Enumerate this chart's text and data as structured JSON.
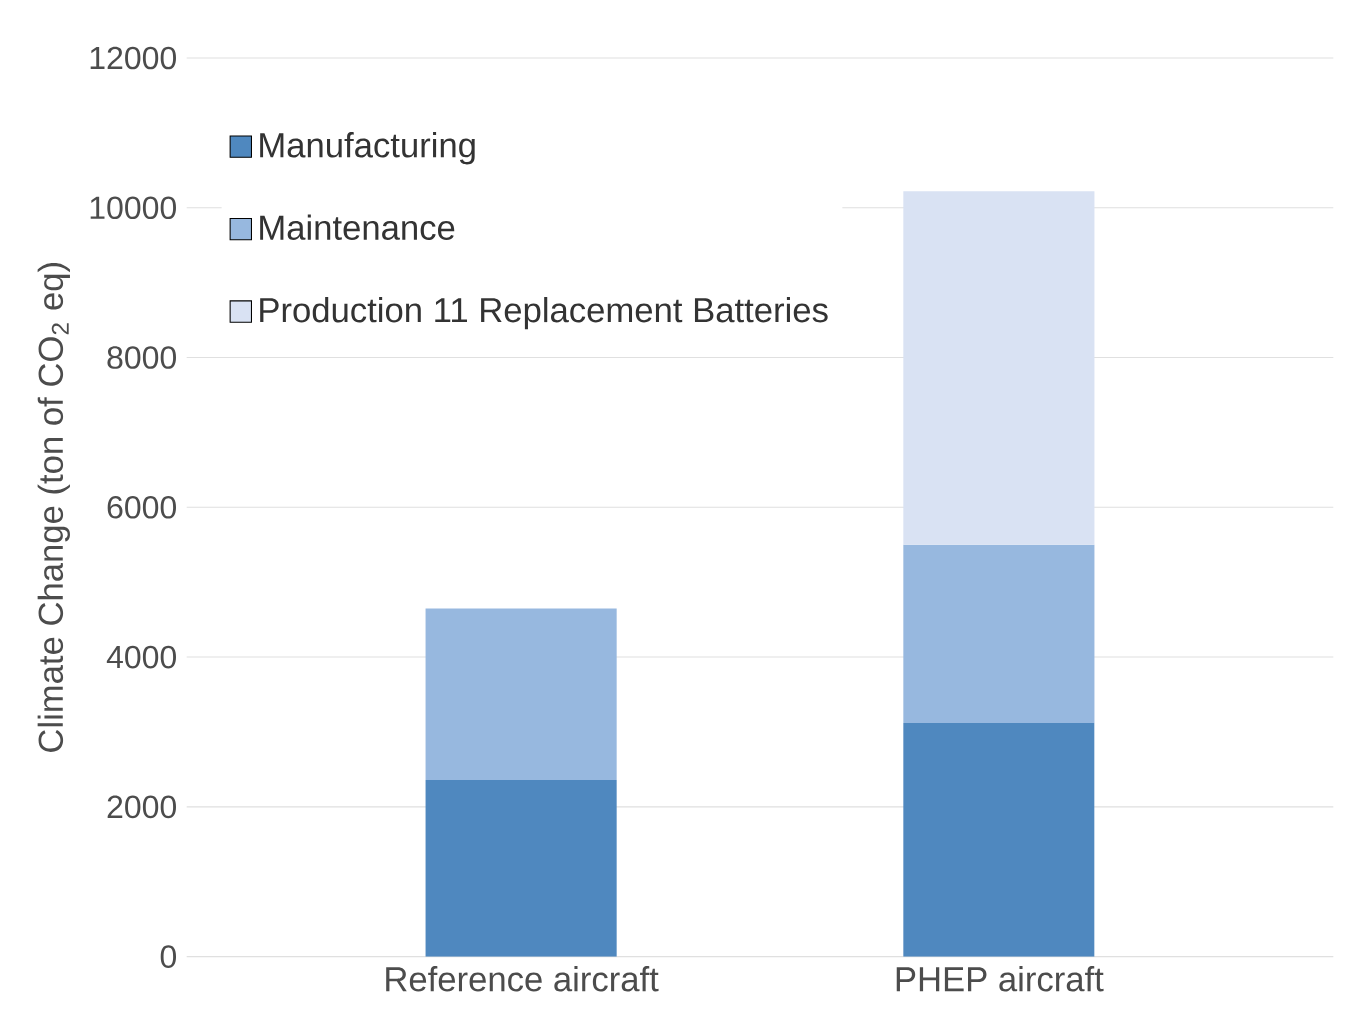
{
  "chart_data": {
    "type": "bar",
    "stacked": true,
    "ylabel": "Climate Change (ton of CO$_{2}$ eq)",
    "categories": [
      "Reference aircraft",
      "PHEP aircraft"
    ],
    "series": [
      {
        "name": "Manufacturing",
        "color": "#4f88bf",
        "values": [
          2360,
          3120
        ]
      },
      {
        "name": "Maintenance",
        "color": "#97b8df",
        "values": [
          2290,
          2380
        ]
      },
      {
        "name": "Production 11 Replacement Batteries",
        "color": "#d9e2f3",
        "values": [
          null,
          4720
        ]
      }
    ],
    "ylim": [
      0,
      12000
    ],
    "yticks": [
      0,
      2000,
      4000,
      6000,
      8000,
      10000,
      12000
    ],
    "grid": "y",
    "legend": "top left"
  }
}
